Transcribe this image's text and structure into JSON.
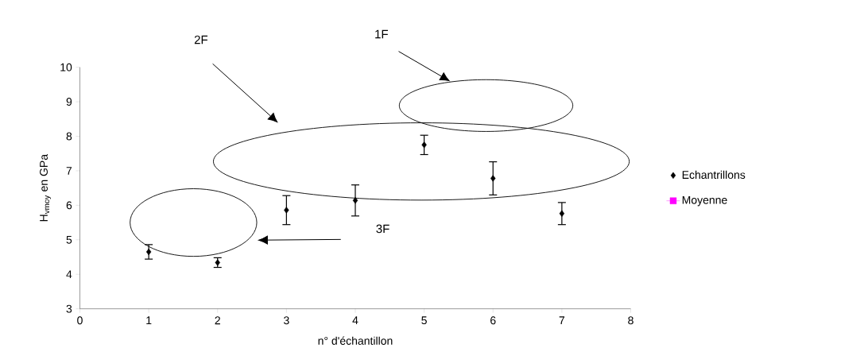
{
  "chart_data": {
    "type": "scatter",
    "xlabel": "n° d'échantillon",
    "ylabel": "H$_{vmoy}$ en GPa",
    "x": [
      1,
      2,
      3,
      4,
      5,
      6,
      7
    ],
    "series": [
      {
        "name": "Echantrillons",
        "color": "#000000",
        "marker": "diamond",
        "values": [
          4.65,
          4.34,
          5.86,
          6.14,
          7.75,
          6.78,
          5.76
        ],
        "errors": [
          0.21,
          0.14,
          0.42,
          0.45,
          0.28,
          0.48,
          0.32
        ]
      },
      {
        "name": "Moyenne",
        "type": "line",
        "marker": "square",
        "color": "#ff00ff",
        "values": [
          null,
          null,
          null,
          null,
          null,
          null,
          null
        ]
      }
    ],
    "xlim": [
      0,
      8
    ],
    "ylim": [
      3,
      10
    ],
    "xticks": [
      0,
      1,
      2,
      3,
      4,
      5,
      6,
      7,
      8
    ],
    "yticks": [
      3,
      4,
      5,
      6,
      7,
      8,
      9,
      10
    ],
    "legend": "right",
    "annotations": [
      "1F",
      "2F",
      "3F"
    ]
  }
}
